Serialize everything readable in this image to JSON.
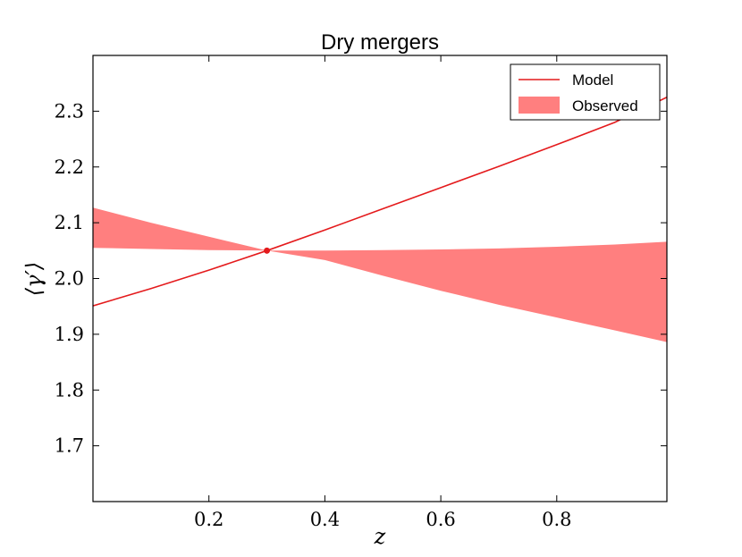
{
  "chart_data": {
    "type": "line",
    "title": "Dry mergers",
    "xlabel": "z",
    "ylabel": "⟨γ′⟩",
    "xlim": [
      0.0,
      0.99
    ],
    "ylim": [
      1.6,
      2.4
    ],
    "x_ticks": [
      0.2,
      0.4,
      0.6,
      0.8
    ],
    "x_tick_labels": [
      "0.2",
      "0.4",
      "0.6",
      "0.8"
    ],
    "y_ticks": [
      1.7,
      1.8,
      1.9,
      2.0,
      2.1,
      2.2,
      2.3
    ],
    "y_tick_labels": [
      "1.7",
      "1.8",
      "1.9",
      "2.0",
      "2.1",
      "2.2",
      "2.3"
    ],
    "grid": false,
    "legend_position": "top-right",
    "series": [
      {
        "name": "Model",
        "kind": "line",
        "color": "#e41a1c",
        "x": [
          0.0,
          0.1,
          0.2,
          0.3,
          0.4,
          0.5,
          0.6,
          0.7,
          0.8,
          0.9,
          0.99
        ],
        "y": [
          1.951,
          1.982,
          2.015,
          2.05,
          2.087,
          2.125,
          2.163,
          2.201,
          2.24,
          2.28,
          2.325
        ]
      },
      {
        "name": "Observed",
        "kind": "band",
        "color": "#ff7f7f",
        "x": [
          0.0,
          0.1,
          0.2,
          0.3,
          0.4,
          0.5,
          0.6,
          0.7,
          0.8,
          0.9,
          0.99
        ],
        "upper": [
          2.127,
          2.1,
          2.075,
          2.05,
          2.05,
          2.051,
          2.052,
          2.054,
          2.057,
          2.061,
          2.066
        ],
        "lower": [
          2.055,
          2.053,
          2.051,
          2.05,
          2.033,
          2.005,
          1.978,
          1.953,
          1.93,
          1.907,
          1.886
        ]
      }
    ],
    "markers": [
      {
        "x": 0.3,
        "y": 2.05,
        "color": "#e41a1c"
      }
    ]
  }
}
